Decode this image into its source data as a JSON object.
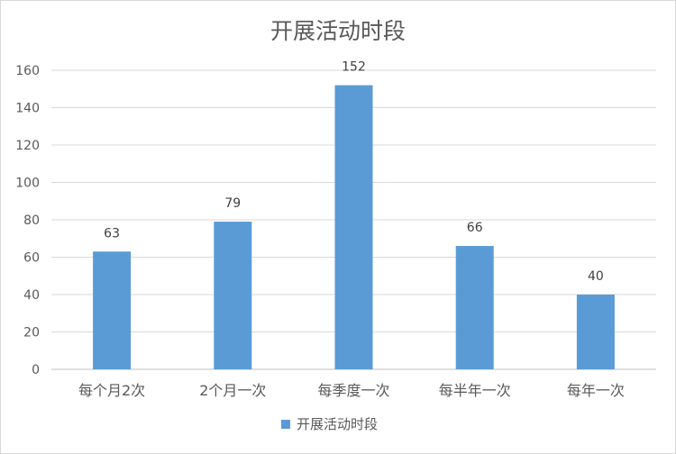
{
  "chart_data": {
    "type": "bar",
    "title": "开展活动时段",
    "categories": [
      "每个月2次",
      "2个月一次",
      "每季度一次",
      "每半年一次",
      "每年一次"
    ],
    "series": [
      {
        "name": "开展活动时段",
        "values": [
          63,
          79,
          152,
          66,
          40
        ],
        "color": "#5b9bd5"
      }
    ],
    "xlabel": "",
    "ylabel": "",
    "ylim": [
      0,
      160
    ],
    "yticks": [
      "0",
      "20",
      "40",
      "60",
      "80",
      "100",
      "120",
      "140",
      "160"
    ],
    "grid": true,
    "legend_position": "bottom"
  }
}
